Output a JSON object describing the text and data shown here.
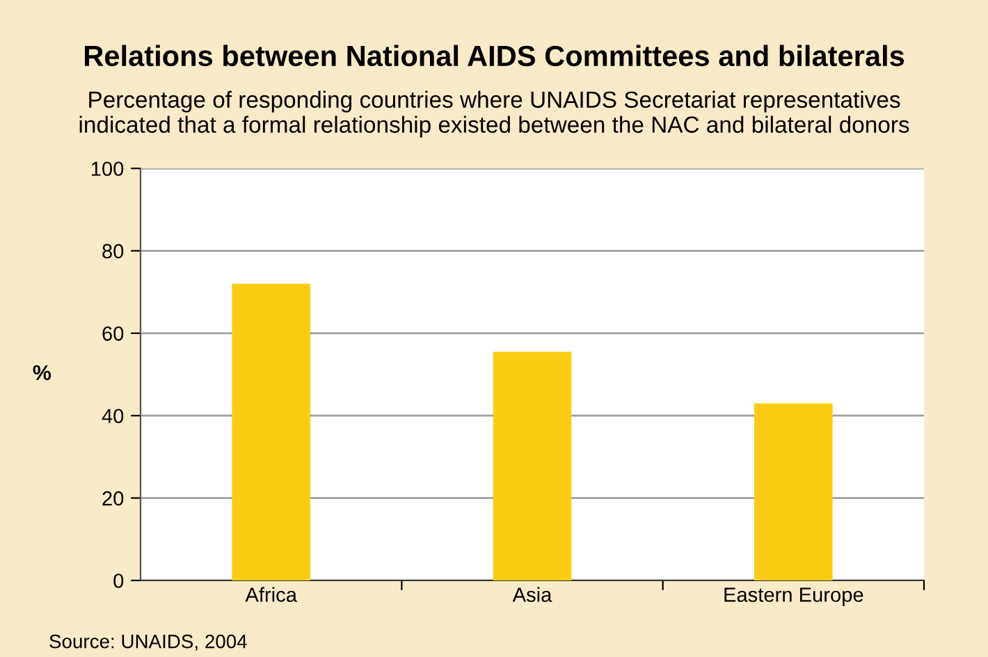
{
  "chart_data": {
    "type": "bar",
    "title": "Relations between National AIDS Committees and bilaterals",
    "subtitle": "Percentage of responding countries where UNAIDS Secretariat representatives\nindicated that a formal relationship existed between the NAC and bilateral donors",
    "ylabel": "%",
    "categories": [
      "Africa",
      "Asia",
      "Eastern Europe"
    ],
    "values": [
      72,
      55.5,
      43
    ],
    "color": "#facd14",
    "ylim": [
      0,
      100
    ],
    "yticks": [
      0,
      20,
      40,
      60,
      80,
      100
    ],
    "grid": "y",
    "annotations": [
      "Source: UNAIDS, 2004"
    ]
  }
}
